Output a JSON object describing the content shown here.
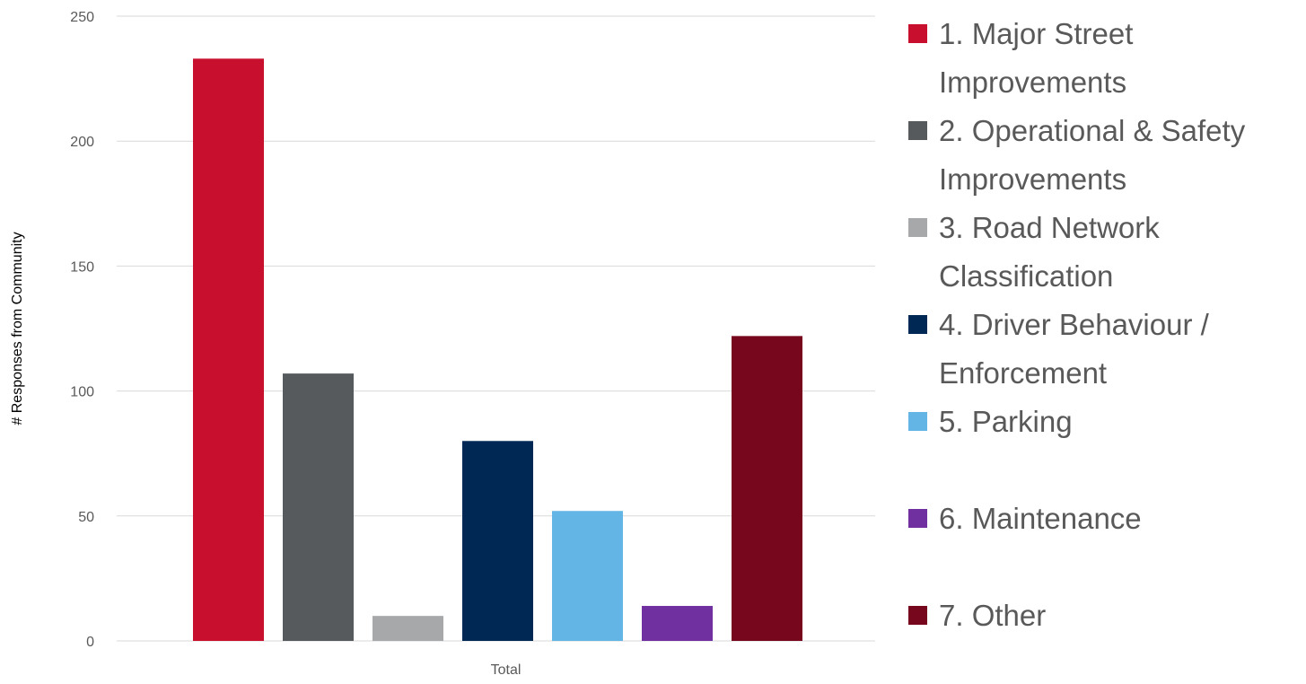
{
  "chart_data": {
    "type": "bar",
    "title": "",
    "categories": [
      "Total"
    ],
    "xlabel": "",
    "ylabel": "# Responses from Community",
    "ylim": [
      0,
      250
    ],
    "yticks": [
      0,
      50,
      100,
      150,
      200,
      250
    ],
    "grid": true,
    "legend_position": "right",
    "series": [
      {
        "name": "1. Major Street Improvements",
        "legend_lines": [
          "1. Major Street",
          "Improvements"
        ],
        "values": [
          233
        ],
        "color": "#c8102e"
      },
      {
        "name": "2. Operational & Safety Improvements",
        "legend_lines": [
          "2. Operational & Safety",
          "Improvements"
        ],
        "values": [
          107
        ],
        "color": "#575a5d"
      },
      {
        "name": "3. Road Network Classification",
        "legend_lines": [
          "3. Road Network",
          "Classification"
        ],
        "values": [
          10
        ],
        "color": "#a7a8aa"
      },
      {
        "name": "4. Driver Behaviour / Enforcement",
        "legend_lines": [
          "4. Driver Behaviour /",
          "Enforcement"
        ],
        "values": [
          80
        ],
        "color": "#002855"
      },
      {
        "name": "5. Parking",
        "legend_lines": [
          "5. Parking"
        ],
        "values": [
          52
        ],
        "color": "#62b5e5"
      },
      {
        "name": "6. Maintenance",
        "legend_lines": [
          "6. Maintenance"
        ],
        "values": [
          14
        ],
        "color": "#7030a0"
      },
      {
        "name": "7. Other",
        "legend_lines": [
          "7. Other"
        ],
        "values": [
          122
        ],
        "color": "#76071c"
      }
    ]
  }
}
